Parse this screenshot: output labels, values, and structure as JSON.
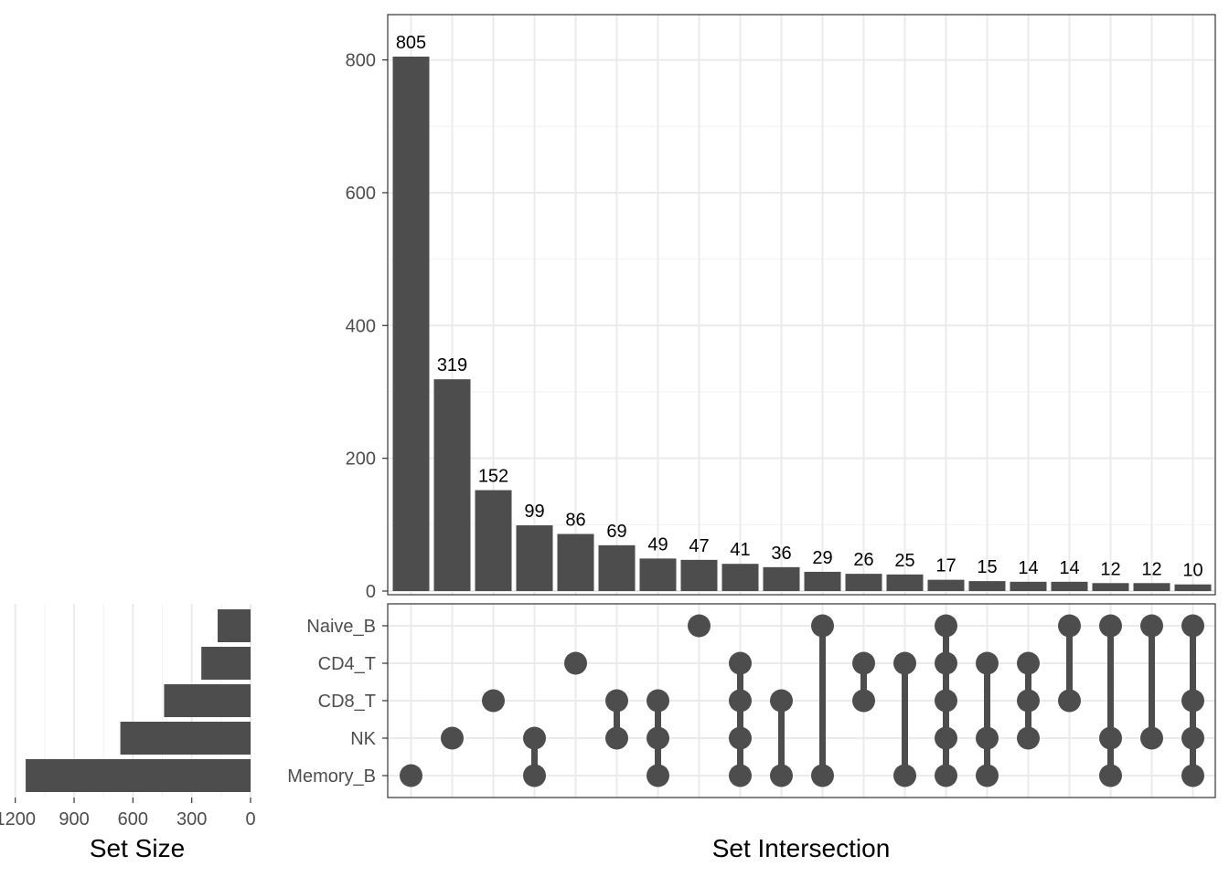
{
  "chart_data": {
    "type": "upset",
    "intersections": {
      "type": "bar",
      "xlabel": "Set Intersection",
      "ylabel": "",
      "ylim": [
        0,
        870
      ],
      "yticks": [
        0,
        200,
        400,
        600,
        800
      ],
      "values": [
        805,
        319,
        152,
        99,
        86,
        69,
        49,
        47,
        41,
        36,
        29,
        26,
        25,
        17,
        15,
        14,
        14,
        12,
        12,
        10
      ],
      "members": [
        [
          "Memory_B"
        ],
        [
          "NK"
        ],
        [
          "CD8_T"
        ],
        [
          "NK",
          "Memory_B"
        ],
        [
          "CD4_T"
        ],
        [
          "CD8_T",
          "NK"
        ],
        [
          "CD8_T",
          "NK",
          "Memory_B"
        ],
        [
          "Naive_B"
        ],
        [
          "CD4_T",
          "CD8_T",
          "NK",
          "Memory_B"
        ],
        [
          "CD8_T",
          "Memory_B"
        ],
        [
          "Naive_B",
          "Memory_B"
        ],
        [
          "CD4_T",
          "CD8_T"
        ],
        [
          "CD4_T",
          "Memory_B"
        ],
        [
          "Naive_B",
          "CD4_T",
          "CD8_T",
          "NK",
          "Memory_B"
        ],
        [
          "CD4_T",
          "NK",
          "Memory_B"
        ],
        [
          "CD4_T",
          "CD8_T",
          "NK"
        ],
        [
          "Naive_B",
          "CD8_T"
        ],
        [
          "Naive_B",
          "NK",
          "Memory_B"
        ],
        [
          "Naive_B",
          "NK"
        ],
        [
          "Naive_B",
          "CD8_T",
          "NK",
          "Memory_B"
        ]
      ]
    },
    "sets": {
      "type": "bar",
      "orientation": "horizontal",
      "xlabel": "Set Size",
      "xlim": [
        1200,
        0
      ],
      "xticks": [
        1200,
        900,
        600,
        300,
        0
      ],
      "xtick_labels": [
        "1200",
        "900",
        "600",
        "300",
        "0"
      ],
      "names": [
        "Naive_B",
        "CD4_T",
        "CD8_T",
        "NK",
        "Memory_B"
      ],
      "values": [
        168,
        251,
        441,
        664,
        1147
      ]
    },
    "colors": {
      "bar": "#4d4d4d",
      "dot": "#4d4d4d",
      "panel_border": "#333333",
      "grid": "#ebebeb"
    }
  }
}
